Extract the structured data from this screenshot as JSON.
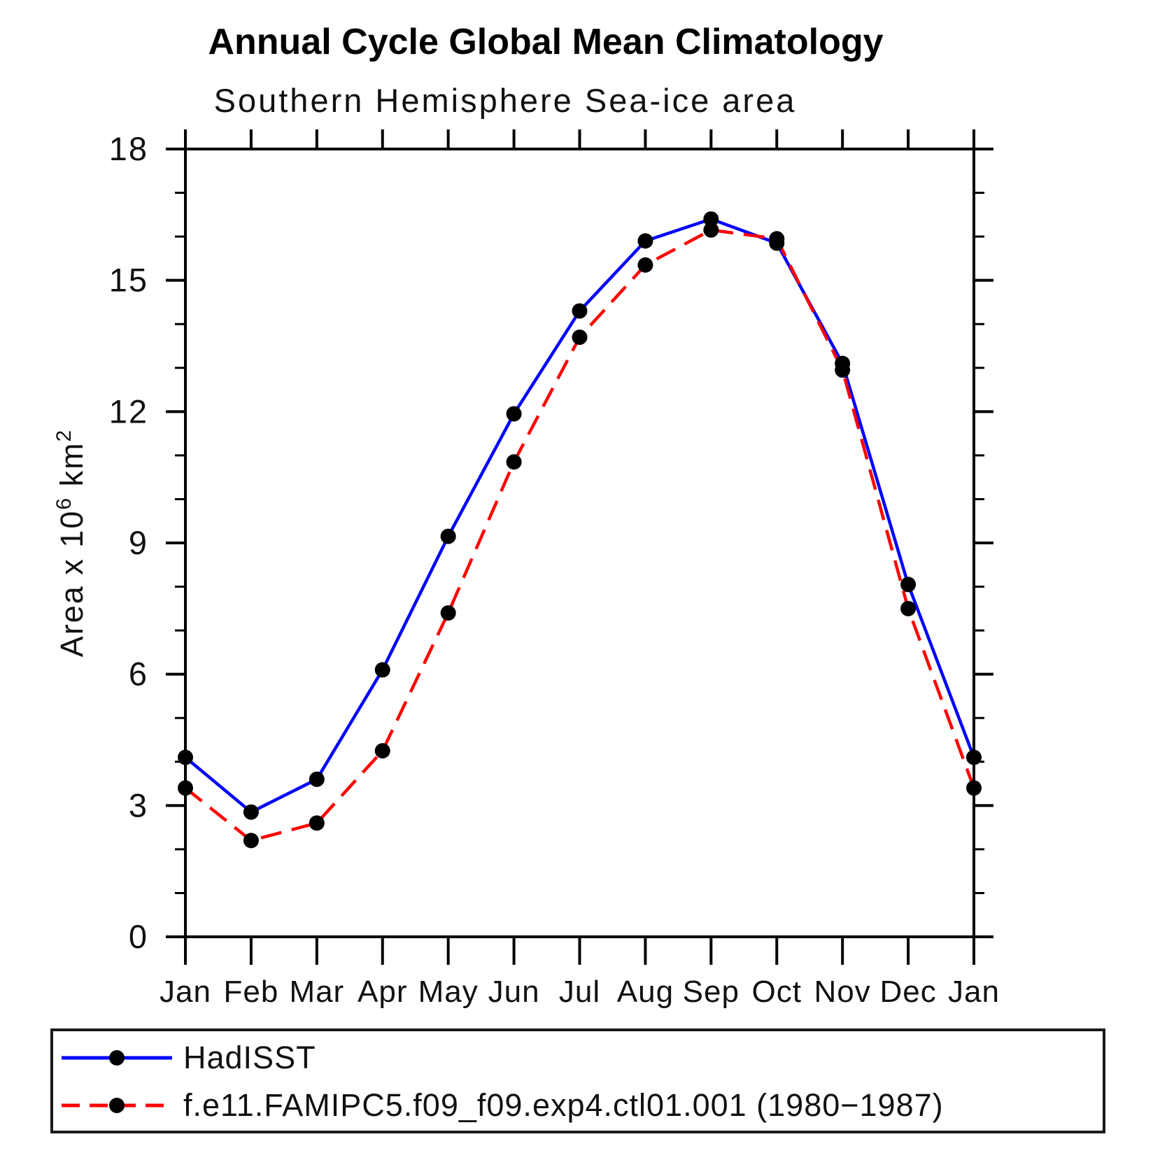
{
  "chart_data": {
    "type": "line",
    "title": "Annual Cycle Global Mean Climatology",
    "subtitle": "Southern Hemisphere Sea-ice area",
    "ylabel": {
      "base1": "Area x 10",
      "sup1": "6",
      "base2": " km",
      "sup2": "2"
    },
    "categories": [
      "Jan",
      "Feb",
      "Mar",
      "Apr",
      "May",
      "Jun",
      "Jul",
      "Aug",
      "Sep",
      "Oct",
      "Nov",
      "Dec",
      "Jan"
    ],
    "ylim": [
      0,
      18
    ],
    "y_major_ticks": [
      0,
      3,
      6,
      9,
      12,
      15,
      18
    ],
    "y_minor_step": 1,
    "grid": false,
    "legend_position": "bottom",
    "axis_color": "#000000",
    "marker_color": "#000000",
    "series": [
      {
        "name": "HadISST",
        "color": "#0000ff",
        "style": "solid",
        "marker": "filled-circle",
        "values": [
          4.1,
          2.85,
          3.6,
          6.1,
          9.15,
          11.95,
          14.3,
          15.9,
          16.4,
          15.85,
          13.1,
          8.05,
          4.1
        ]
      },
      {
        "name": "f.e11.FAMIPC5.f09_f09.exp4.ctl01.001 (1980−1987)",
        "color": "#ff0000",
        "style": "dashed",
        "marker": "filled-circle",
        "values": [
          3.4,
          2.2,
          2.6,
          4.25,
          7.4,
          10.85,
          13.7,
          15.35,
          16.15,
          15.95,
          12.95,
          7.5,
          3.4
        ]
      }
    ]
  }
}
